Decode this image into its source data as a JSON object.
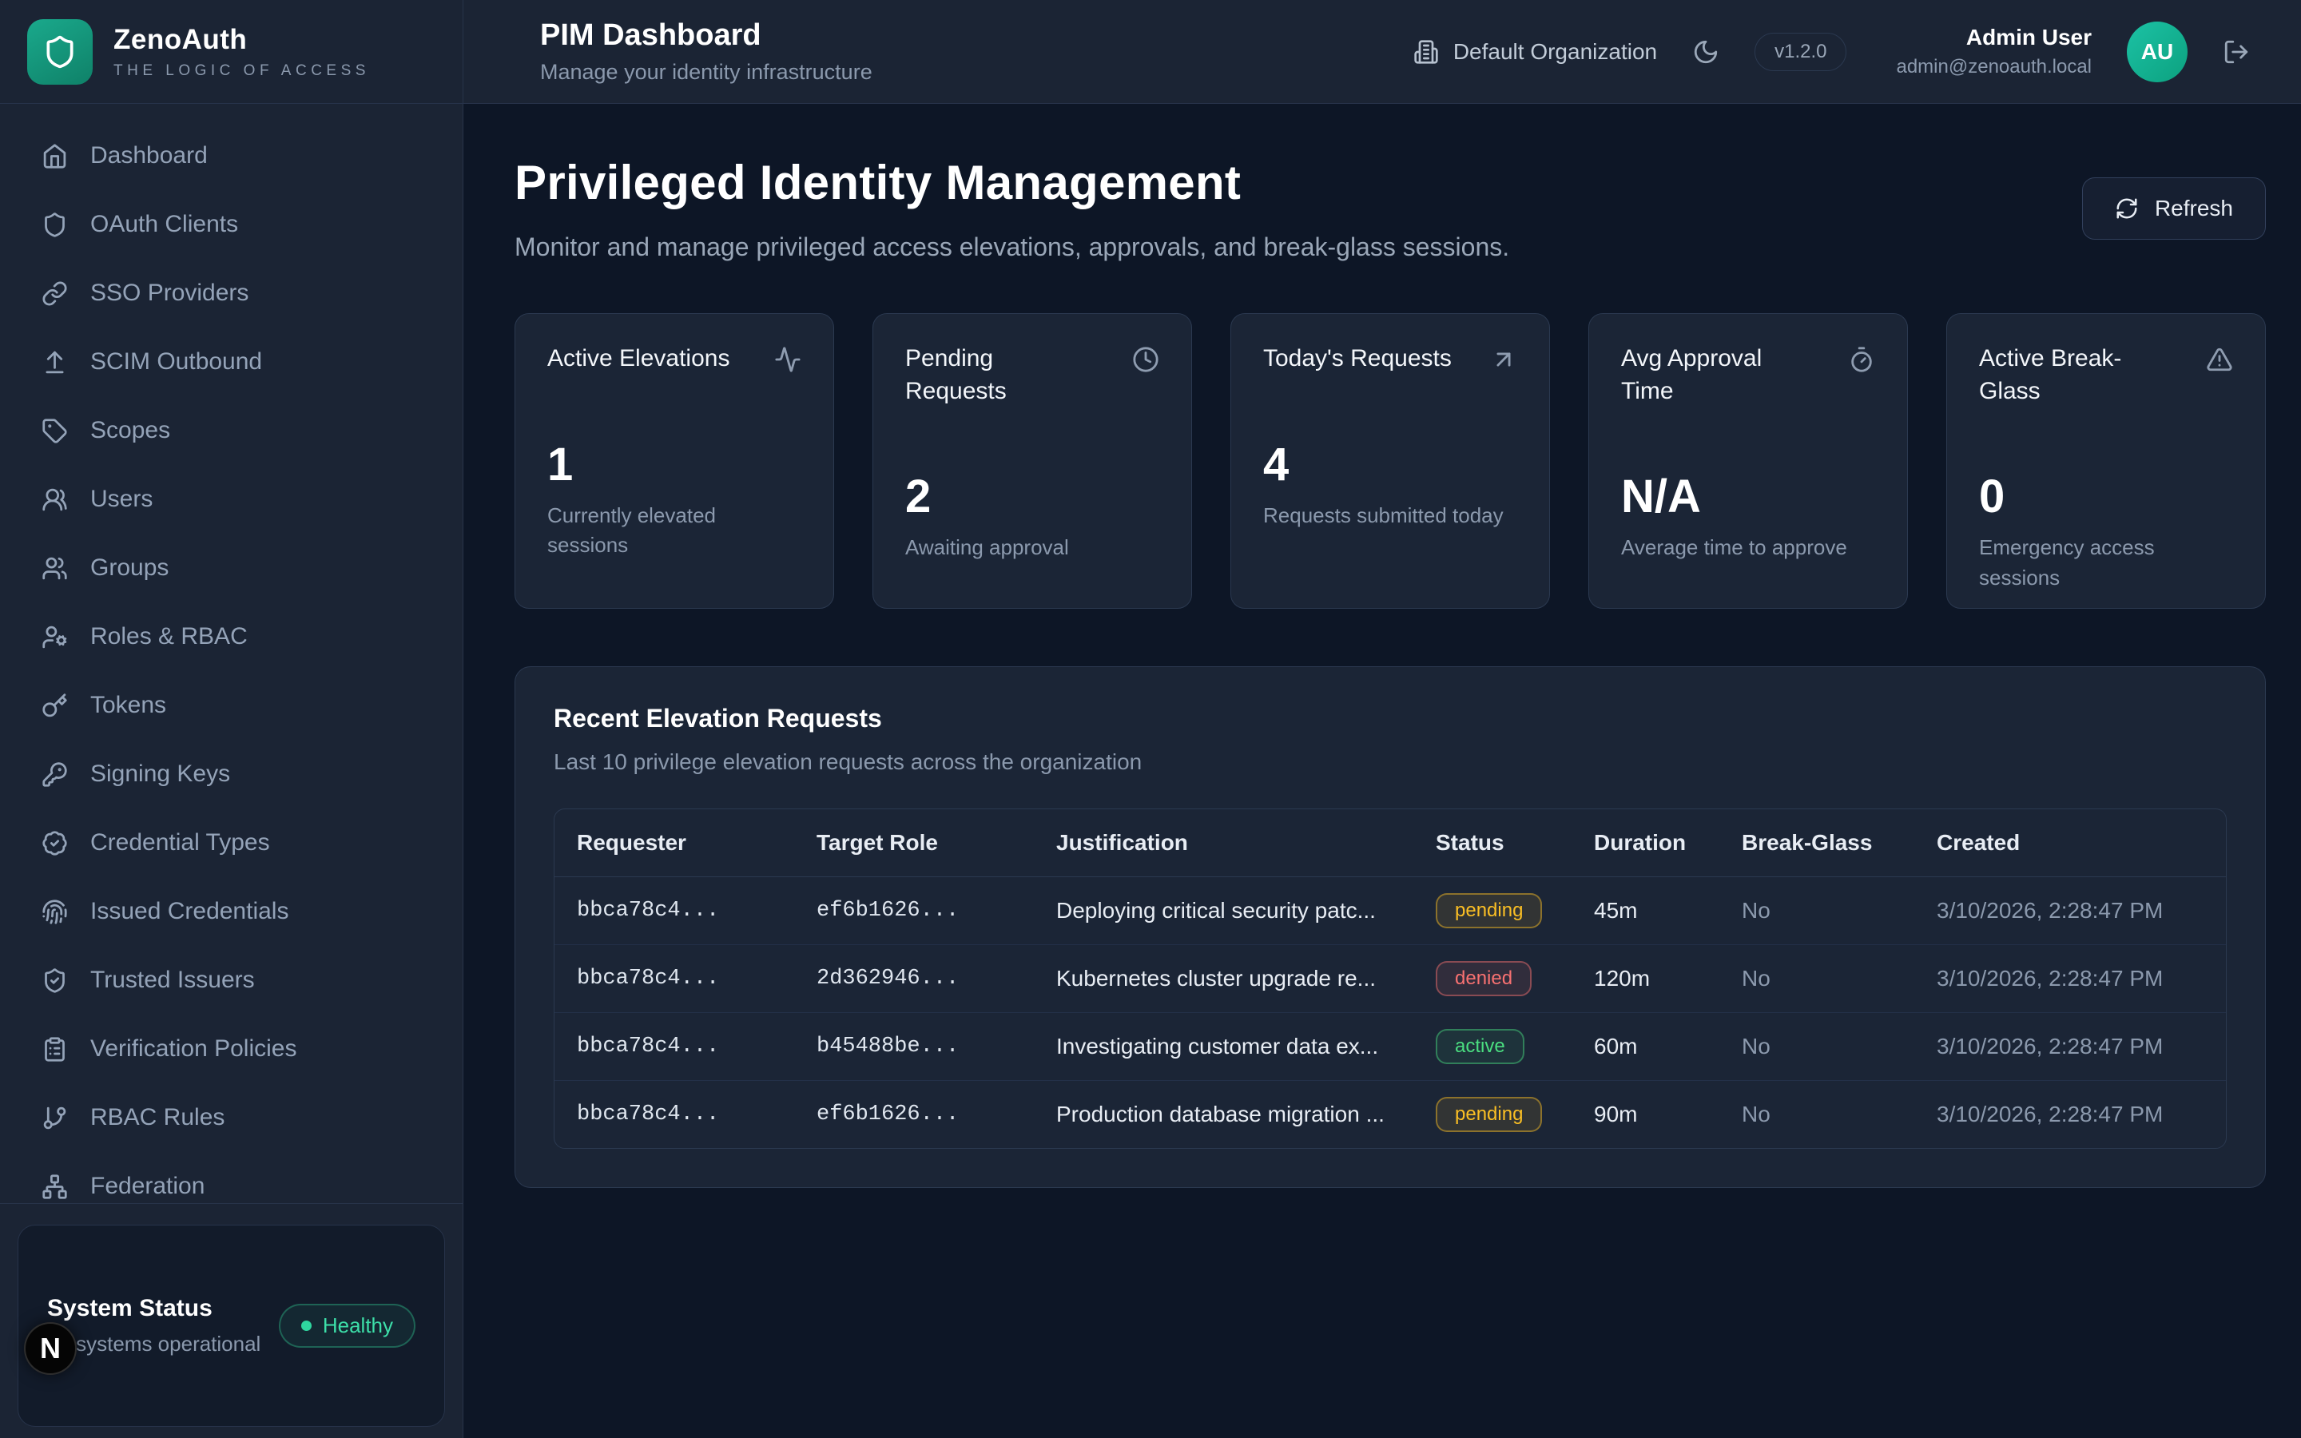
{
  "brand": {
    "name": "ZenoAuth",
    "tagline": "THE LOGIC OF ACCESS",
    "logo_icon": "shield"
  },
  "sidebar": {
    "items": [
      {
        "label": "Dashboard",
        "icon": "home"
      },
      {
        "label": "OAuth Clients",
        "icon": "shield"
      },
      {
        "label": "SSO Providers",
        "icon": "link"
      },
      {
        "label": "SCIM Outbound",
        "icon": "upload"
      },
      {
        "label": "Scopes",
        "icon": "tag"
      },
      {
        "label": "Users",
        "icon": "user-round"
      },
      {
        "label": "Groups",
        "icon": "users"
      },
      {
        "label": "Roles & RBAC",
        "icon": "user-cog"
      },
      {
        "label": "Tokens",
        "icon": "key"
      },
      {
        "label": "Signing Keys",
        "icon": "key-round"
      },
      {
        "label": "Credential Types",
        "icon": "badge-check"
      },
      {
        "label": "Issued Credentials",
        "icon": "fingerprint"
      },
      {
        "label": "Trusted Issuers",
        "icon": "shield-check"
      },
      {
        "label": "Verification Policies",
        "icon": "clipboard-list"
      },
      {
        "label": "RBAC Rules",
        "icon": "git-branch"
      },
      {
        "label": "Federation",
        "icon": "network"
      }
    ],
    "system_status": {
      "title": "System Status",
      "subtitle": "All systems operational",
      "badge": "Healthy"
    },
    "dev_badge": "N"
  },
  "topbar": {
    "title": "PIM Dashboard",
    "subtitle": "Manage your identity infrastructure",
    "organization": "Default Organization",
    "version": "v1.2.0",
    "user": {
      "name": "Admin User",
      "email": "admin@zenoauth.local",
      "initials": "AU"
    }
  },
  "page": {
    "title": "Privileged Identity Management",
    "subtitle": "Monitor and manage privileged access elevations, approvals, and break-glass sessions.",
    "refresh_label": "Refresh"
  },
  "stats": [
    {
      "title": "Active Elevations",
      "icon": "activity",
      "value": "1",
      "subtitle": "Currently elevated sessions"
    },
    {
      "title": "Pending Requests",
      "icon": "clock",
      "value": "2",
      "subtitle": "Awaiting approval"
    },
    {
      "title": "Today's Requests",
      "icon": "arrow-up-right",
      "value": "4",
      "subtitle": "Requests submitted today"
    },
    {
      "title": "Avg Approval Time",
      "icon": "timer",
      "value": "N/A",
      "subtitle": "Average time to approve"
    },
    {
      "title": "Active Break-Glass",
      "icon": "alert-triangle",
      "value": "0",
      "subtitle": "Emergency access sessions"
    }
  ],
  "table": {
    "title": "Recent Elevation Requests",
    "subtitle": "Last 10 privilege elevation requests across the organization",
    "columns": [
      "Requester",
      "Target Role",
      "Justification",
      "Status",
      "Duration",
      "Break-Glass",
      "Created"
    ],
    "rows": [
      {
        "requester": "bbca78c4...",
        "target_role": "ef6b1626...",
        "justification": "Deploying critical security patc...",
        "status": "pending",
        "duration": "45m",
        "break_glass": "No",
        "created": "3/10/2026, 2:28:47 PM"
      },
      {
        "requester": "bbca78c4...",
        "target_role": "2d362946...",
        "justification": "Kubernetes cluster upgrade re...",
        "status": "denied",
        "duration": "120m",
        "break_glass": "No",
        "created": "3/10/2026, 2:28:47 PM"
      },
      {
        "requester": "bbca78c4...",
        "target_role": "b45488be...",
        "justification": "Investigating customer data ex...",
        "status": "active",
        "duration": "60m",
        "break_glass": "No",
        "created": "3/10/2026, 2:28:47 PM"
      },
      {
        "requester": "bbca78c4...",
        "target_role": "ef6b1626...",
        "justification": "Production database migration ...",
        "status": "pending",
        "duration": "90m",
        "break_glass": "No",
        "created": "3/10/2026, 2:28:47 PM"
      }
    ]
  },
  "colors": {
    "accent_teal": "#14b8a6",
    "background": "#0d1626",
    "surface": "#1b2536",
    "status_pending": "#fbbf24",
    "status_denied": "#f87171",
    "status_active": "#4ade80",
    "status_healthy": "#34d399"
  }
}
